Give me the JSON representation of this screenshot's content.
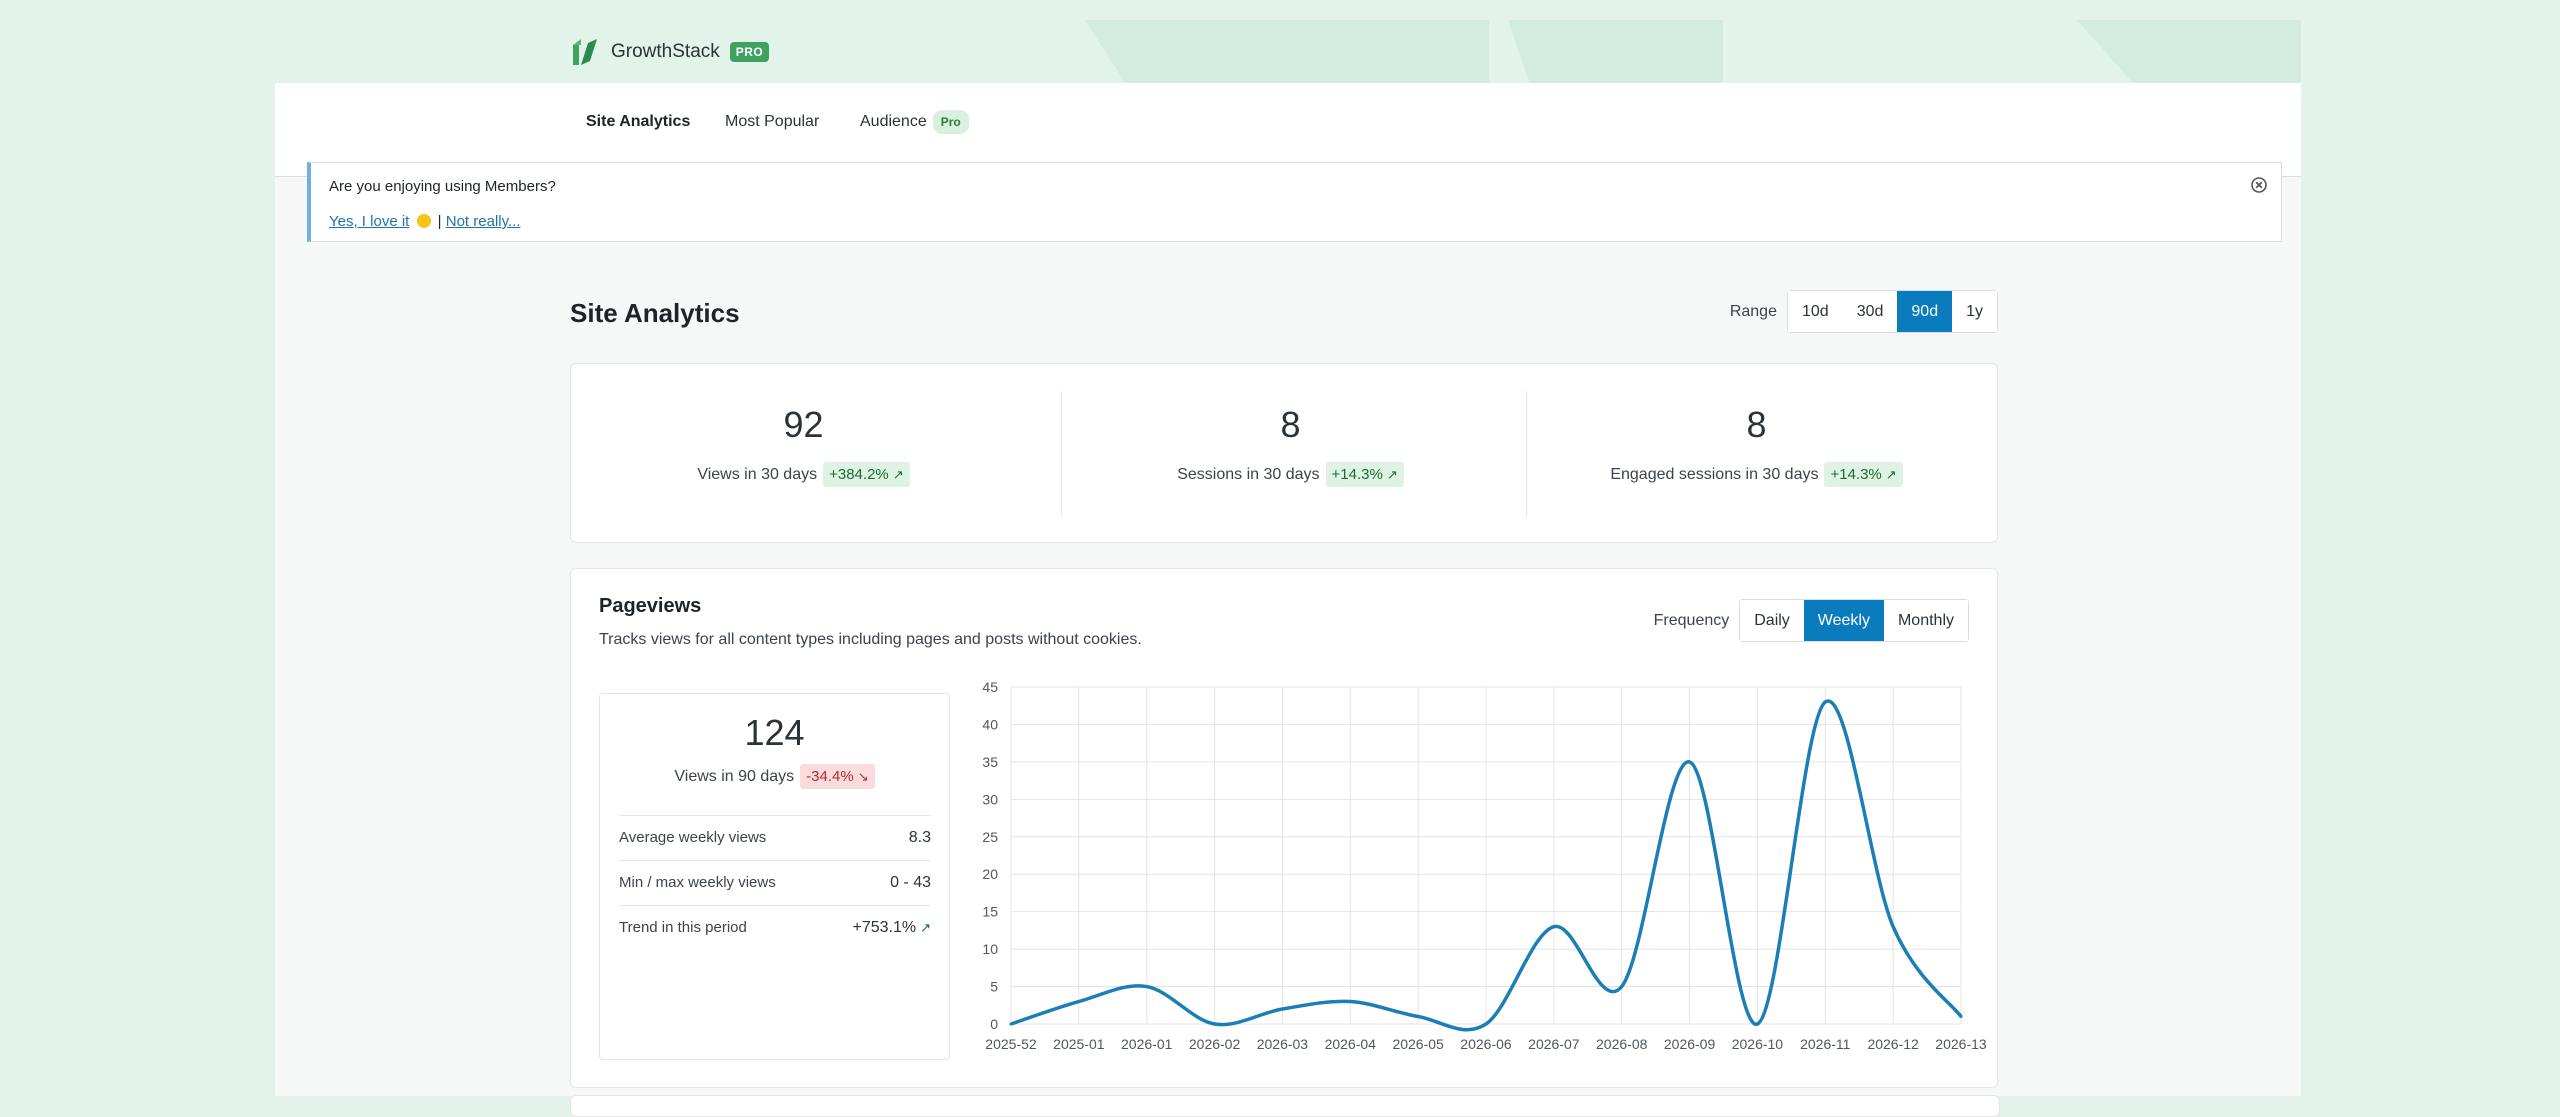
{
  "brand": {
    "name": "GrowthStack",
    "badge": "PRO"
  },
  "tabs": [
    {
      "label": "Site Analytics",
      "active": true
    },
    {
      "label": "Most Popular"
    },
    {
      "label": "Audience",
      "badge": "Pro"
    }
  ],
  "notice": {
    "question": "Are you enjoying using Members?",
    "yes": "Yes, I love it",
    "sep": "|",
    "no": "Not really..."
  },
  "page": {
    "title": "Site Analytics"
  },
  "range": {
    "label": "Range",
    "options": [
      "10d",
      "30d",
      "90d",
      "1y"
    ],
    "selected": "90d"
  },
  "stats": [
    {
      "value": "92",
      "label": "Views in 30 days",
      "delta": "+384.2%",
      "trend": "up"
    },
    {
      "value": "8",
      "label": "Sessions in 30 days",
      "delta": "+14.3%",
      "trend": "up"
    },
    {
      "value": "8",
      "label": "Engaged sessions in 30 days",
      "delta": "+14.3%",
      "trend": "up"
    }
  ],
  "pageviews": {
    "title": "Pageviews",
    "description": "Tracks views for all content types including pages and posts without cookies.",
    "frequency": {
      "label": "Frequency",
      "options": [
        "Daily",
        "Weekly",
        "Monthly"
      ],
      "selected": "Weekly"
    },
    "summary": {
      "value": "124",
      "label": "Views in 90 days",
      "delta": "-34.4%",
      "rows": [
        {
          "label": "Average weekly views",
          "value": "8.3"
        },
        {
          "label": "Min / max weekly views",
          "value": "0 - 43"
        },
        {
          "label": "Trend in this period",
          "value": "+753.1%"
        }
      ]
    }
  },
  "colors": {
    "accent": "#0a7bbd",
    "line": "#1b7fb5",
    "success": "#4caf50",
    "notice_border": "#72aee6"
  },
  "chart_data": {
    "type": "line",
    "x": [
      "2025-52",
      "2025-01",
      "2026-01",
      "2026-02",
      "2026-03",
      "2026-04",
      "2026-05",
      "2026-06",
      "2026-07",
      "2026-08",
      "2026-09",
      "2026-10",
      "2026-11",
      "2026-12",
      "2026-13"
    ],
    "values": [
      0,
      3,
      5,
      0,
      2,
      3,
      1,
      0,
      13,
      5,
      35,
      0,
      43,
      13,
      1
    ],
    "ylim": [
      0,
      45
    ],
    "yticks": [
      0,
      5,
      10,
      15,
      20,
      25,
      30,
      35,
      40,
      45
    ],
    "grid": true,
    "smooth": true
  }
}
